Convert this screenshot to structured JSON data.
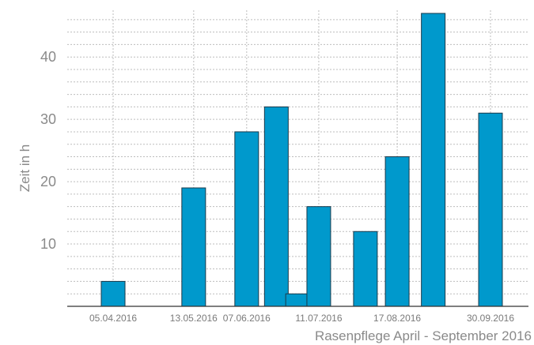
{
  "chart_data": {
    "type": "bar",
    "xlabel": "Rasenpflege April - September 2016",
    "ylabel": "Zeit in h",
    "ylim": [
      0,
      47.5
    ],
    "yticks": [
      10,
      20,
      30,
      40
    ],
    "x_tick_labels": [
      "05.04.2016",
      "13.05.2016",
      "07.06.2016",
      "11.07.2016",
      "17.08.2016",
      "30.09.2016"
    ],
    "x_tick_dates": [
      "2016-04-05",
      "2016-05-13",
      "2016-06-07",
      "2016-07-11",
      "2016-08-17",
      "2016-09-30"
    ],
    "bars": [
      {
        "date": "2016-04-05",
        "value": 4
      },
      {
        "date": "2016-05-13",
        "value": 19
      },
      {
        "date": "2016-06-07",
        "value": 28
      },
      {
        "date": "2016-06-21",
        "value": 32
      },
      {
        "date": "2016-07-01",
        "value": 2
      },
      {
        "date": "2016-07-11",
        "value": 16
      },
      {
        "date": "2016-08-02",
        "value": 12
      },
      {
        "date": "2016-08-17",
        "value": 24
      },
      {
        "date": "2016-09-03",
        "value": 47
      },
      {
        "date": "2016-09-30",
        "value": 31
      }
    ],
    "bar_color": "#0099cc",
    "grid": true,
    "legend": "none"
  }
}
